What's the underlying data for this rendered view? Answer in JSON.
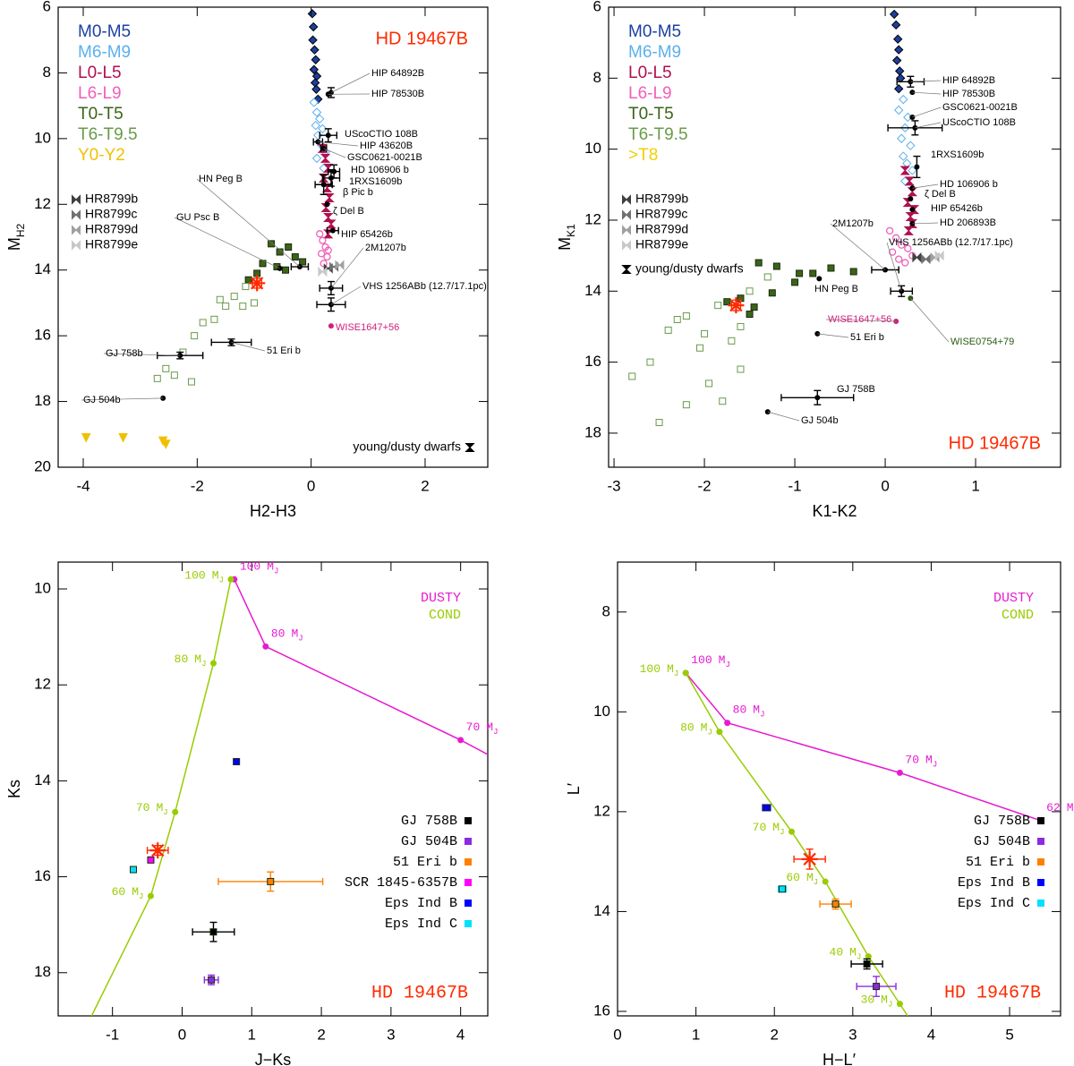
{
  "chart_data": [
    {
      "type": "scatter",
      "title": "HD 19467B",
      "title_color": "#ff2a00",
      "title_corner": "upper-right",
      "xlabel": "H2-H3",
      "ylabel": {
        "main": "M",
        "sub": "H2"
      },
      "xlim": [
        -4.44,
        3.1
      ],
      "ylim": [
        6,
        20
      ],
      "y_inverted": true,
      "xticks": [
        -4,
        -2,
        0,
        2
      ],
      "yticks": [
        6,
        8,
        10,
        12,
        14,
        16,
        18,
        20
      ],
      "legend": "upper-left",
      "note": "young/dusty dwarfs",
      "note_corner": "lower-right",
      "object_marker": "circle",
      "series": [
        {
          "name": "M0-M5",
          "color": "#1c3fa0",
          "marker": "diamond",
          "x": [
            0.02,
            0.04,
            0.03,
            0.06,
            0.08,
            0.05,
            0.1,
            0.07,
            0.09,
            0.12
          ],
          "y": [
            6.2,
            6.6,
            7.0,
            7.3,
            7.6,
            7.9,
            8.1,
            8.3,
            8.5,
            8.8
          ]
        },
        {
          "name": "M6-M9",
          "color": "#5ab0ee",
          "marker": "diamond-open",
          "x": [
            0.05,
            0.1,
            0.15,
            0.08,
            0.2,
            0.12,
            0.18,
            0.25,
            0.1,
            0.22
          ],
          "y": [
            8.9,
            9.2,
            9.4,
            9.6,
            9.7,
            9.9,
            10.2,
            10.4,
            10.6,
            10.9
          ]
        },
        {
          "name": "L0-L5",
          "color": "#b0104e",
          "marker": "hourglass",
          "x": [
            0.2,
            0.25,
            0.3,
            0.22,
            0.28,
            0.32,
            0.26,
            0.3,
            0.35,
            0.3
          ],
          "y": [
            10.3,
            10.6,
            10.9,
            11.2,
            11.5,
            11.8,
            12.1,
            12.4,
            12.6,
            12.9
          ]
        },
        {
          "name": "L6-L9",
          "color": "#f060b8",
          "marker": "circle-open",
          "x": [
            0.15,
            0.2,
            0.25,
            0.18,
            0.28,
            0.22,
            0.3
          ],
          "y": [
            12.9,
            13.1,
            13.3,
            13.5,
            13.6,
            13.8,
            13.4
          ]
        },
        {
          "name": "T0-T5",
          "color": "#3a6518",
          "marker": "square",
          "x": [
            -0.7,
            -0.55,
            -0.4,
            -0.28,
            -0.15,
            -0.6,
            -0.85,
            -0.95,
            -1.1,
            -0.45
          ],
          "y": [
            13.2,
            13.45,
            13.3,
            13.6,
            13.75,
            13.9,
            13.8,
            14.1,
            14.3,
            14.0
          ]
        },
        {
          "name": "T6-T9.5",
          "color": "#6a9a4a",
          "marker": "square-open",
          "x": [
            -1.15,
            -1.35,
            -1.5,
            -1.7,
            -1.9,
            -2.05,
            -2.25,
            -2.55,
            -2.7,
            -2.4,
            -2.1,
            -1.2,
            -1.0,
            -1.6
          ],
          "y": [
            14.5,
            14.8,
            15.1,
            15.5,
            15.6,
            16.0,
            16.5,
            17.0,
            17.3,
            17.2,
            17.4,
            15.1,
            15.0,
            14.9
          ]
        },
        {
          "name": "Y0-Y2",
          "color": "#f0c000",
          "marker": "triangle",
          "x": [
            -3.95,
            -3.3,
            -2.6,
            -2.55
          ],
          "y": [
            19.1,
            19.1,
            19.2,
            19.3
          ]
        },
        {
          "name": "HR8799b",
          "color": "#404040",
          "marker": "bowtie",
          "x": [
            0.3
          ],
          "y": [
            13.95
          ]
        },
        {
          "name": "HR8799c",
          "color": "#707070",
          "marker": "bowtie",
          "x": [
            0.4
          ],
          "y": [
            13.9
          ]
        },
        {
          "name": "HR8799d",
          "color": "#a0a0a0",
          "marker": "bowtie",
          "x": [
            0.5
          ],
          "y": [
            13.85
          ]
        },
        {
          "name": "HR8799e",
          "color": "#c8c8c8",
          "marker": "bowtie",
          "x": [
            0.2
          ],
          "y": [
            14.05
          ]
        }
      ],
      "objects": [
        {
          "name": "HIP 64892B",
          "x": 0.35,
          "y": 8.6,
          "yerr": 0.15
        },
        {
          "name": "HIP 78530B",
          "x": 0.3,
          "y": 8.65
        },
        {
          "name": "UScoCTIO 108B",
          "x": 0.3,
          "y": 9.9,
          "xerr": 0.15,
          "yerr": 0.2
        },
        {
          "name": "HIP 43620B",
          "x": 0.12,
          "y": 10.1,
          "xerr": 0.08
        },
        {
          "name": "GSC0621-0021B",
          "x": 0.22,
          "y": 10.3,
          "xerr": 0.05
        },
        {
          "name": "HD 106906 b",
          "x": 0.4,
          "y": 11.0,
          "xerr": 0.1,
          "yerr": 0.2
        },
        {
          "name": "1RXS1609b",
          "x": 0.35,
          "y": 11.2,
          "xerr": 0.15,
          "yerr": 0.25
        },
        {
          "name": "β Pic b",
          "x": 0.22,
          "y": 11.4,
          "xerr": 0.15,
          "yerr": 0.3
        },
        {
          "name": "ζ Del B",
          "x": 0.28,
          "y": 12.0
        },
        {
          "name": "HIP 65426b",
          "x": 0.38,
          "y": 12.8,
          "xerr": 0.1
        },
        {
          "name": "2M1207b",
          "x": 0.35,
          "y": 14.55,
          "xerr": 0.2,
          "yerr": 0.2
        },
        {
          "name": "VHS 1256ABb (12.7/17.1pc)",
          "x": 0.35,
          "y": 15.05,
          "xerr": 0.25,
          "yerr": 0.2
        },
        {
          "name": "WISE1647+56",
          "x": 0.35,
          "y": 15.7,
          "color": "#d0207a"
        },
        {
          "name": "HN Peg B",
          "x": -0.2,
          "y": 13.9,
          "xerr": 0.15
        },
        {
          "name": "GU Psc B",
          "x": -0.55,
          "y": 13.95
        },
        {
          "name": "51 Eri b",
          "x": -1.4,
          "y": 16.2,
          "xerr": 0.35,
          "yerr": 0.1
        },
        {
          "name": "GJ 758b",
          "x": -2.3,
          "y": 16.6,
          "xerr": 0.4,
          "yerr": 0.1
        },
        {
          "name": "GJ 504b",
          "x": -2.6,
          "y": 17.9
        }
      ],
      "target": {
        "x": -0.95,
        "y": 14.4,
        "xerr": 0.08,
        "yerr": 0.15,
        "color": "#ff2a00"
      }
    },
    {
      "type": "scatter",
      "title": "HD 19467B",
      "title_color": "#ff2a00",
      "title_corner": "lower-right",
      "xlabel": "K1-K2",
      "ylabel": {
        "main": "M",
        "sub": "K1"
      },
      "xlim": [
        -3.06,
        1.94
      ],
      "ylim": [
        6,
        18.96
      ],
      "y_inverted": true,
      "xticks": [
        -3,
        -2,
        -1,
        0,
        1
      ],
      "yticks": [
        6,
        8,
        10,
        12,
        14,
        16,
        18
      ],
      "legend": "upper-left",
      "note": "young/dusty dwarfs",
      "note_corner": "upper-left",
      "object_marker": "circle",
      "series": [
        {
          "name": "M0-M5",
          "color": "#1c3fa0",
          "marker": "diamond",
          "x": [
            0.1,
            0.12,
            0.14,
            0.15,
            0.13,
            0.16,
            0.17,
            0.15
          ],
          "y": [
            6.2,
            6.5,
            6.9,
            7.2,
            7.5,
            7.8,
            8.0,
            8.3
          ]
        },
        {
          "name": "M6-M9",
          "color": "#5ab0ee",
          "marker": "diamond-open",
          "x": [
            0.2,
            0.15,
            0.25,
            0.22,
            0.18,
            0.28,
            0.2,
            0.24,
            0.3,
            0.22
          ],
          "y": [
            8.6,
            8.9,
            9.1,
            9.4,
            9.7,
            9.9,
            10.2,
            10.4,
            10.6,
            10.9
          ]
        },
        {
          "name": "L0-L5",
          "color": "#b0104e",
          "marker": "hourglass",
          "x": [
            0.22,
            0.27,
            0.3,
            0.25,
            0.32,
            0.28,
            0.3,
            0.26
          ],
          "y": [
            10.6,
            10.9,
            11.2,
            11.5,
            11.7,
            11.9,
            12.1,
            12.3
          ]
        },
        {
          "name": "L6-L9",
          "color": "#f060b8",
          "marker": "circle-open",
          "x": [
            0.05,
            0.12,
            0.18,
            0.25,
            0.3,
            0.15,
            0.08,
            0.22
          ],
          "y": [
            12.3,
            12.5,
            12.7,
            12.8,
            13.0,
            13.1,
            12.9,
            13.2
          ]
        },
        {
          "name": "T0-T5",
          "color": "#3a6518",
          "marker": "square",
          "x": [
            -1.4,
            -1.2,
            -0.95,
            -0.6,
            -0.35,
            -1.45,
            -1.5,
            -1.6,
            -1.25,
            -1.0,
            -0.8,
            -1.75
          ],
          "y": [
            13.2,
            13.3,
            13.5,
            13.35,
            13.45,
            14.45,
            14.65,
            14.2,
            14.05,
            13.75,
            13.5,
            14.3
          ]
        },
        {
          "name": "T6-T9.5",
          "color": "#6a9a4a",
          "marker": "square-open",
          "x": [
            -2.8,
            -2.6,
            -2.4,
            -2.2,
            -2.5,
            -2.2,
            -1.95,
            -1.8,
            -1.6,
            -1.85,
            -1.5,
            -1.3,
            -2.0,
            -1.7,
            -1.6,
            -2.3,
            -2.05
          ],
          "y": [
            16.4,
            16.0,
            15.1,
            14.7,
            17.7,
            17.2,
            16.6,
            17.1,
            16.2,
            14.4,
            14.0,
            13.6,
            15.2,
            15.4,
            15.0,
            14.8,
            15.6
          ]
        },
        {
          "name": ">T8",
          "color": "#f0d000",
          "marker": "triangle",
          "x": [],
          "y": []
        },
        {
          "name": "HR8799b",
          "color": "#404040",
          "marker": "bowtie",
          "x": [
            0.35
          ],
          "y": [
            13.05
          ]
        },
        {
          "name": "HR8799c",
          "color": "#707070",
          "marker": "bowtie",
          "x": [
            0.45
          ],
          "y": [
            13.1
          ]
        },
        {
          "name": "HR8799d",
          "color": "#a0a0a0",
          "marker": "bowtie",
          "x": [
            0.55
          ],
          "y": [
            13.05
          ]
        },
        {
          "name": "HR8799e",
          "color": "#c8c8c8",
          "marker": "bowtie",
          "x": [
            0.6
          ],
          "y": [
            13.0
          ]
        }
      ],
      "objects": [
        {
          "name": "HIP 64892B",
          "x": 0.28,
          "y": 8.1,
          "xerr": 0.15,
          "yerr": 0.15
        },
        {
          "name": "HIP 78530B",
          "x": 0.3,
          "y": 8.4
        },
        {
          "name": "GSC0621-0021B",
          "x": 0.3,
          "y": 9.1
        },
        {
          "name": "UScoCTIO 108B",
          "x": 0.33,
          "y": 9.4,
          "xerr": 0.3,
          "yerr": 0.2
        },
        {
          "name": "1RXS1609b",
          "x": 0.35,
          "y": 10.5,
          "yerr": 0.3
        },
        {
          "name": "HD 106906 b",
          "x": 0.3,
          "y": 11.1
        },
        {
          "name": "ζ Del B",
          "x": 0.28,
          "y": 11.4
        },
        {
          "name": "HIP 65426b",
          "x": 0.3,
          "y": 11.7
        },
        {
          "name": "HD 206893B",
          "x": 0.3,
          "y": 12.1
        },
        {
          "name": "2M1207b",
          "x": 0.0,
          "y": 13.4,
          "xerr": 0.15
        },
        {
          "name": "VHS 1256ABb (12.7/17.1pc)",
          "x": 0.18,
          "y": 14.0,
          "xerr": 0.12,
          "yerr": 0.15
        },
        {
          "name": "HN Peg B",
          "x": -0.73,
          "y": 13.65
        },
        {
          "name": "WISE1647+56",
          "x": 0.12,
          "y": 14.85,
          "color": "#d0207a"
        },
        {
          "name": "WISE0754+79",
          "x": 0.28,
          "y": 14.2,
          "color": "#2a5a10"
        },
        {
          "name": "51 Eri b",
          "x": -0.75,
          "y": 15.2
        },
        {
          "name": "GJ 758B",
          "x": -0.75,
          "y": 17.0,
          "xerr": 0.4,
          "yerr": 0.2
        },
        {
          "name": "GJ 504b",
          "x": -1.3,
          "y": 17.4
        }
      ],
      "target": {
        "x": -1.65,
        "y": 14.4,
        "xerr": 0.05,
        "yerr": 0.15,
        "color": "#ff2a00"
      }
    },
    {
      "type": "scatter",
      "title": "HD 19467B",
      "title_color": "#ff2a00",
      "title_corner": "lower-right",
      "xlabel": "J−Ks",
      "ylabel": "Ks",
      "xlim": [
        -1.78,
        4.39
      ],
      "ylim": [
        9.44,
        18.9
      ],
      "y_inverted": true,
      "xticks": [
        -1,
        0,
        1,
        2,
        3,
        4
      ],
      "yticks": [
        10,
        12,
        14,
        16,
        18
      ],
      "legend": "upper-right",
      "object_legend": "center-right",
      "object_marker": "square",
      "mass_unit": {
        "main": "M",
        "sub": "J"
      },
      "series": [
        {
          "name": "DUSTY",
          "color": "#e61ad0",
          "mode": "line",
          "x": [
            0.75,
            1.2,
            4.0,
            4.39
          ],
          "y": [
            9.8,
            11.2,
            13.15,
            13.45
          ],
          "masses": [
            100,
            80,
            70,
            null
          ]
        },
        {
          "name": "COND",
          "color": "#99cc00",
          "mode": "line",
          "x": [
            0.7,
            0.45,
            -0.1,
            -0.45,
            -1.3
          ],
          "y": [
            9.8,
            11.55,
            14.65,
            16.4,
            18.9
          ],
          "masses": [
            100,
            80,
            70,
            60,
            null
          ]
        }
      ],
      "objects": [
        {
          "name": "GJ 758B",
          "x": 0.45,
          "y": 17.15,
          "xerr": 0.3,
          "yerr": 0.2,
          "color": "#000000"
        },
        {
          "name": "GJ 504B",
          "x": 0.42,
          "y": 18.15,
          "xerr": 0.1,
          "yerr": 0.1,
          "color": "#8a2be2"
        },
        {
          "name": "51 Eri b",
          "x": 1.27,
          "y": 16.1,
          "xerr": 0.75,
          "yerr": 0.2,
          "color": "#ff8000"
        },
        {
          "name": "SCR 1845-6357B",
          "x": -0.45,
          "y": 15.65,
          "color": "#ff00ff"
        },
        {
          "name": "Eps Ind B",
          "x": 0.78,
          "y": 13.6,
          "color": "#0000ff"
        },
        {
          "name": "Eps Ind C",
          "x": -0.7,
          "y": 15.85,
          "color": "#00e0ff"
        }
      ],
      "target": {
        "x": -0.35,
        "y": 15.45,
        "xerr": 0.15,
        "yerr": 0.1,
        "color": "#ff2a00"
      }
    },
    {
      "type": "scatter",
      "title": "HD 19467B",
      "title_color": "#ff2a00",
      "title_corner": "lower-right",
      "xlabel": "H−L′",
      "ylabel": "L′",
      "xlim": [
        0,
        5.65
      ],
      "ylim": [
        7.0,
        16.09
      ],
      "y_inverted": true,
      "xticks": [
        0,
        1,
        2,
        3,
        4,
        5
      ],
      "yticks": [
        8,
        10,
        12,
        14,
        16
      ],
      "legend": "upper-right",
      "object_legend": "center-right",
      "object_marker": "square",
      "mass_unit": {
        "main": "M",
        "sub": "J"
      },
      "series": [
        {
          "name": "DUSTY",
          "color": "#e61ad0",
          "mode": "line",
          "x": [
            0.87,
            1.4,
            3.6,
            5.4
          ],
          "y": [
            9.22,
            10.22,
            11.22,
            12.18
          ],
          "masses": [
            100,
            80,
            70,
            62
          ]
        },
        {
          "name": "COND",
          "color": "#99cc00",
          "mode": "line",
          "x": [
            0.87,
            1.3,
            2.22,
            2.65,
            3.2,
            3.6,
            3.7
          ],
          "y": [
            9.22,
            10.4,
            12.4,
            13.4,
            14.9,
            15.85,
            16.09
          ],
          "masses": [
            100,
            80,
            70,
            60,
            40,
            30,
            null
          ]
        }
      ],
      "objects": [
        {
          "name": "GJ 758B",
          "x": 3.18,
          "y": 15.05,
          "xerr": 0.2,
          "yerr": 0.1,
          "color": "#000000"
        },
        {
          "name": "GJ 504B",
          "x": 3.3,
          "y": 15.5,
          "xerr": 0.25,
          "yerr": 0.2,
          "color": "#8a2be2"
        },
        {
          "name": "51 Eri b",
          "x": 2.78,
          "y": 13.85,
          "xerr": 0.2,
          "yerr": 0.1,
          "color": "#ff8000"
        },
        {
          "name": "Eps Ind B",
          "x": 1.9,
          "y": 11.92,
          "xerr": 0.05,
          "yerr": 0.03,
          "color": "#0000ff"
        },
        {
          "name": "Eps Ind C",
          "x": 2.1,
          "y": 13.55,
          "xerr": 0.05,
          "yerr": 0.05,
          "color": "#00e0ff"
        }
      ],
      "target": {
        "x": 2.45,
        "y": 12.95,
        "xerr": 0.2,
        "yerr": 0.2,
        "color": "#ff2a00"
      }
    }
  ]
}
